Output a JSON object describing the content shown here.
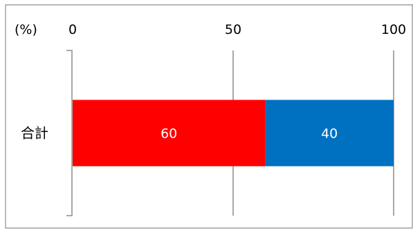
{
  "chart_data": {
    "type": "bar",
    "orientation": "horizontal",
    "stacked": true,
    "unit_label": "(%)",
    "categories": [
      "合計"
    ],
    "series": [
      {
        "values": [
          60
        ],
        "color": "#FF0000"
      },
      {
        "values": [
          40
        ],
        "color": "#0070C0"
      }
    ],
    "xlim": [
      0,
      100
    ],
    "xticks": [
      0,
      50,
      100
    ],
    "x_tick_labels": [
      "0",
      "50",
      "100"
    ],
    "grid": true,
    "legend": "none",
    "data_labels": [
      "60",
      "40"
    ]
  }
}
